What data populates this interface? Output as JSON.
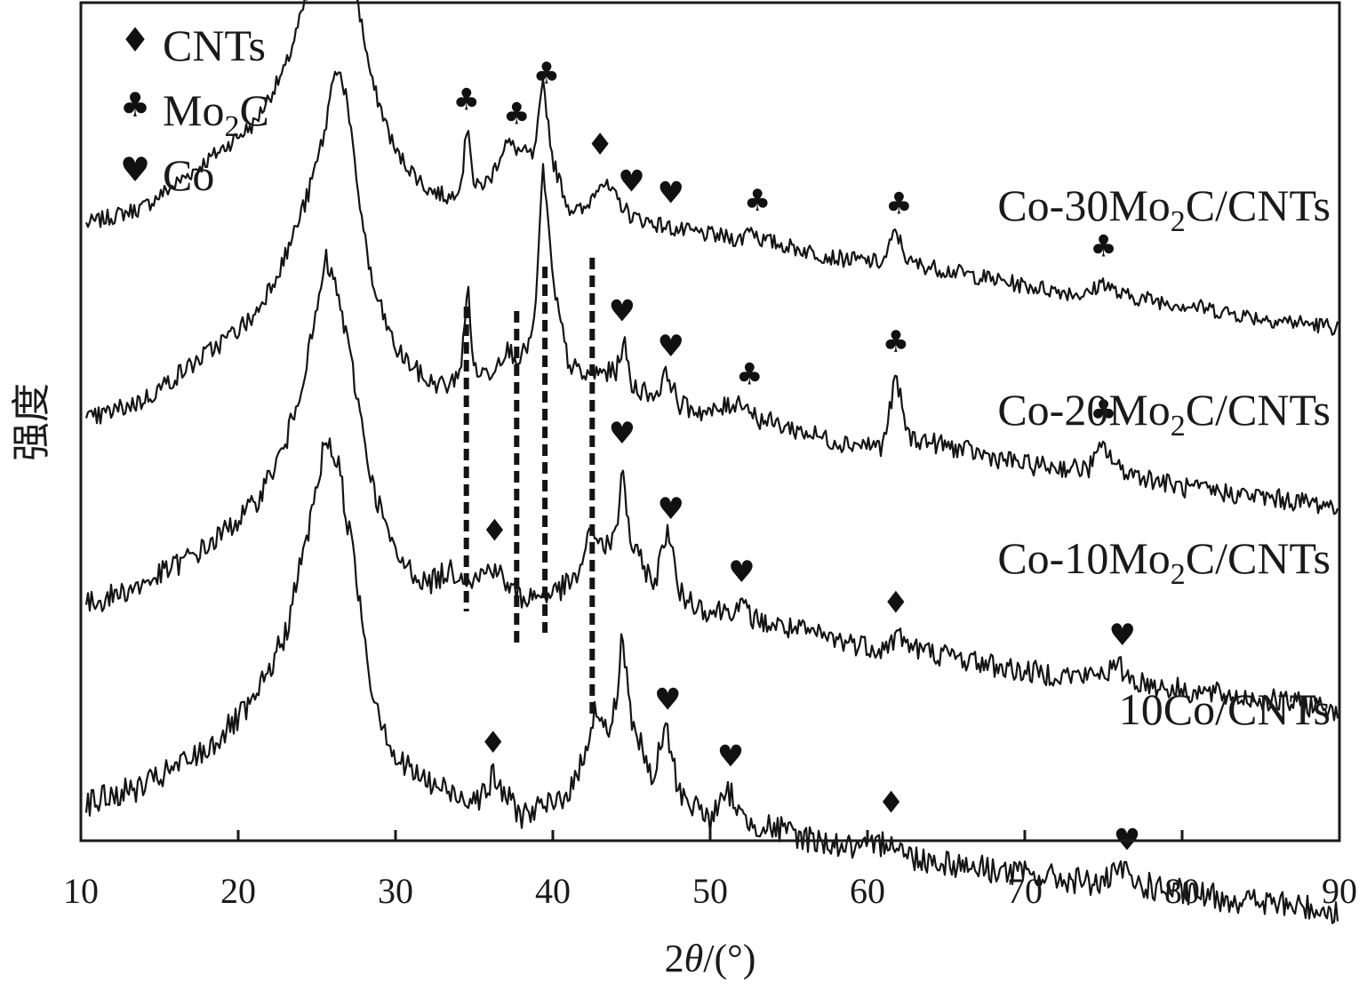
{
  "chart_data": {
    "type": "line",
    "xlabel_pre": "2",
    "xlabel_theta": "θ",
    "xlabel_post": "/(°)",
    "ylabel": "强度",
    "xlim": [
      10,
      90
    ],
    "xticks": [
      10,
      20,
      30,
      40,
      50,
      60,
      70,
      80,
      90
    ],
    "grid": false,
    "legend": {
      "placement": "top-left",
      "entries": [
        {
          "symbol": "♦",
          "name": "CNTs"
        },
        {
          "symbol": "♣",
          "name": "Mo",
          "sub": "2",
          "after": "C"
        },
        {
          "symbol": "♥",
          "name": "Co"
        }
      ]
    },
    "reference_lines_x": [
      34.5,
      37.7,
      39.5,
      42.5
    ],
    "series": [
      {
        "name": "Co-30Mo2C/CNTs",
        "label": {
          "pre": "Co-30Mo",
          "sub": "2",
          "post": "C/CNTs"
        },
        "baseline": 0.66,
        "points": [
          [
            10,
            0.24
          ],
          [
            14,
            0.28
          ],
          [
            18,
            0.38
          ],
          [
            21,
            0.46
          ],
          [
            23,
            0.58
          ],
          [
            24.5,
            0.75
          ],
          [
            25.5,
            0.88
          ],
          [
            26.1,
            0.97
          ],
          [
            26.5,
            0.92
          ],
          [
            27.3,
            0.78
          ],
          [
            28.5,
            0.55
          ],
          [
            30,
            0.4
          ],
          [
            32,
            0.32
          ],
          [
            33.5,
            0.3
          ],
          [
            34.2,
            0.34
          ],
          [
            34.6,
            0.47
          ],
          [
            35.0,
            0.32
          ],
          [
            36.0,
            0.34
          ],
          [
            37.0,
            0.42
          ],
          [
            38.0,
            0.4
          ],
          [
            38.8,
            0.39
          ],
          [
            39.4,
            0.55
          ],
          [
            40.0,
            0.38
          ],
          [
            41.0,
            0.28
          ],
          [
            42.0,
            0.27
          ],
          [
            43.0,
            0.34
          ],
          [
            44.0,
            0.3
          ],
          [
            45.0,
            0.26
          ],
          [
            48,
            0.23
          ],
          [
            52,
            0.21
          ],
          [
            52.5,
            0.24
          ],
          [
            53.2,
            0.21
          ],
          [
            58,
            0.17
          ],
          [
            61,
            0.16
          ],
          [
            61.8,
            0.23
          ],
          [
            62.6,
            0.16
          ],
          [
            70,
            0.11
          ],
          [
            74,
            0.09
          ],
          [
            75,
            0.12
          ],
          [
            76,
            0.09
          ],
          [
            80,
            0.07
          ],
          [
            85,
            0.04
          ],
          [
            90,
            0.02
          ]
        ],
        "markers": [
          {
            "x": 26.6,
            "symbol": "♦"
          },
          {
            "x": 34.5,
            "symbol": "♣"
          },
          {
            "x": 37.7,
            "symbol": "♣"
          },
          {
            "x": 39.6,
            "symbol": "♣"
          },
          {
            "x": 43.0,
            "symbol": "♦"
          },
          {
            "x": 45.0,
            "symbol": "♥"
          },
          {
            "x": 47.5,
            "symbol": "♥"
          },
          {
            "x": 53.0,
            "symbol": "♣"
          },
          {
            "x": 62.0,
            "symbol": "♣"
          },
          {
            "x": 75.0,
            "symbol": "♣"
          }
        ]
      },
      {
        "name": "Co-20Mo2C/CNTs",
        "label": {
          "pre": "Co-20Mo",
          "sub": "2",
          "post": "C/CNTs"
        },
        "baseline": 0.47,
        "points": [
          [
            10,
            0.22
          ],
          [
            14,
            0.27
          ],
          [
            18,
            0.37
          ],
          [
            21,
            0.45
          ],
          [
            23,
            0.58
          ],
          [
            24.5,
            0.72
          ],
          [
            25.5,
            0.85
          ],
          [
            26.2,
            1.0
          ],
          [
            26.8,
            0.94
          ],
          [
            27.5,
            0.75
          ],
          [
            28.5,
            0.52
          ],
          [
            30,
            0.38
          ],
          [
            32,
            0.31
          ],
          [
            33.5,
            0.3
          ],
          [
            34.2,
            0.35
          ],
          [
            34.6,
            0.52
          ],
          [
            35.0,
            0.33
          ],
          [
            36.0,
            0.33
          ],
          [
            37.0,
            0.38
          ],
          [
            38.0,
            0.36
          ],
          [
            38.8,
            0.42
          ],
          [
            39.4,
            0.78
          ],
          [
            40.0,
            0.52
          ],
          [
            41.0,
            0.35
          ],
          [
            42.0,
            0.32
          ],
          [
            43.0,
            0.33
          ],
          [
            44.0,
            0.33
          ],
          [
            44.5,
            0.4
          ],
          [
            45.0,
            0.3
          ],
          [
            46.5,
            0.28
          ],
          [
            47.3,
            0.33
          ],
          [
            48.0,
            0.26
          ],
          [
            50,
            0.24
          ],
          [
            52,
            0.27
          ],
          [
            53.0,
            0.23
          ],
          [
            58,
            0.18
          ],
          [
            61,
            0.17
          ],
          [
            61.8,
            0.32
          ],
          [
            62.6,
            0.19
          ],
          [
            70,
            0.13
          ],
          [
            74,
            0.12
          ],
          [
            75,
            0.17
          ],
          [
            76,
            0.12
          ],
          [
            80,
            0.08
          ],
          [
            85,
            0.06
          ],
          [
            90,
            0.04
          ]
        ],
        "markers": [
          {
            "x": 44.4,
            "symbol": "♥"
          },
          {
            "x": 47.5,
            "symbol": "♥"
          },
          {
            "x": 52.5,
            "symbol": "♣"
          },
          {
            "x": 61.8,
            "symbol": "♣"
          },
          {
            "x": 75.0,
            "symbol": "♣"
          }
        ]
      },
      {
        "name": "Co-10Mo2C/CNTs",
        "label": {
          "pre": "Co-10Mo",
          "sub": "2",
          "post": "C/CNTs"
        },
        "baseline": 0.27,
        "points": [
          [
            10,
            0.25
          ],
          [
            14,
            0.3
          ],
          [
            18,
            0.38
          ],
          [
            21,
            0.47
          ],
          [
            23,
            0.6
          ],
          [
            24.5,
            0.8
          ],
          [
            25.6,
            1.0
          ],
          [
            26.4,
            0.92
          ],
          [
            27.5,
            0.72
          ],
          [
            28.5,
            0.52
          ],
          [
            30,
            0.36
          ],
          [
            32,
            0.3
          ],
          [
            33.5,
            0.33
          ],
          [
            35,
            0.31
          ],
          [
            36.3,
            0.34
          ],
          [
            37.0,
            0.3
          ],
          [
            38.0,
            0.27
          ],
          [
            40.0,
            0.28
          ],
          [
            41.5,
            0.31
          ],
          [
            42.5,
            0.42
          ],
          [
            43.3,
            0.38
          ],
          [
            44.0,
            0.4
          ],
          [
            44.4,
            0.55
          ],
          [
            45.0,
            0.38
          ],
          [
            46.5,
            0.3
          ],
          [
            47.3,
            0.43
          ],
          [
            48.0,
            0.28
          ],
          [
            50,
            0.24
          ],
          [
            52,
            0.25
          ],
          [
            53,
            0.22
          ],
          [
            58,
            0.18
          ],
          [
            61,
            0.16
          ],
          [
            62,
            0.19
          ],
          [
            63,
            0.16
          ],
          [
            70,
            0.11
          ],
          [
            74,
            0.1
          ],
          [
            76,
            0.12
          ],
          [
            77,
            0.09
          ],
          [
            80,
            0.07
          ],
          [
            85,
            0.05
          ],
          [
            90,
            0.03
          ]
        ],
        "markers": [
          {
            "x": 36.3,
            "symbol": "♦"
          },
          {
            "x": 44.4,
            "symbol": "♥"
          },
          {
            "x": 47.5,
            "symbol": "♥"
          },
          {
            "x": 52.0,
            "symbol": "♥"
          },
          {
            "x": 61.8,
            "symbol": "♦"
          },
          {
            "x": 76.2,
            "symbol": "♥"
          }
        ]
      },
      {
        "name": "10Co/CNTs",
        "label": {
          "pre": "10Co/CNTs",
          "sub": "",
          "post": ""
        },
        "baseline": 0.07,
        "points": [
          [
            10,
            0.25
          ],
          [
            14,
            0.29
          ],
          [
            18,
            0.37
          ],
          [
            21,
            0.47
          ],
          [
            23,
            0.62
          ],
          [
            24.5,
            0.85
          ],
          [
            25.6,
            1.05
          ],
          [
            26.4,
            0.98
          ],
          [
            27.5,
            0.75
          ],
          [
            28.5,
            0.5
          ],
          [
            30,
            0.35
          ],
          [
            32,
            0.3
          ],
          [
            34,
            0.27
          ],
          [
            35.5,
            0.27
          ],
          [
            36.2,
            0.31
          ],
          [
            37.0,
            0.27
          ],
          [
            38.0,
            0.23
          ],
          [
            40.0,
            0.25
          ],
          [
            41.5,
            0.3
          ],
          [
            42.7,
            0.46
          ],
          [
            43.5,
            0.4
          ],
          [
            44.0,
            0.47
          ],
          [
            44.4,
            0.62
          ],
          [
            45.0,
            0.44
          ],
          [
            46.3,
            0.3
          ],
          [
            47.2,
            0.42
          ],
          [
            48.0,
            0.28
          ],
          [
            50,
            0.22
          ],
          [
            51.3,
            0.28
          ],
          [
            52,
            0.22
          ],
          [
            56,
            0.18
          ],
          [
            60,
            0.15
          ],
          [
            61.5,
            0.18
          ],
          [
            62.5,
            0.14
          ],
          [
            70,
            0.1
          ],
          [
            75,
            0.08
          ],
          [
            76.2,
            0.11
          ],
          [
            77,
            0.08
          ],
          [
            80,
            0.06
          ],
          [
            85,
            0.04
          ],
          [
            90,
            0.02
          ]
        ],
        "markers": [
          {
            "x": 36.2,
            "symbol": "♦"
          },
          {
            "x": 47.3,
            "symbol": "♥"
          },
          {
            "x": 51.3,
            "symbol": "♥"
          },
          {
            "x": 61.5,
            "symbol": "♦"
          },
          {
            "x": 76.5,
            "symbol": "♥"
          }
        ]
      }
    ]
  }
}
